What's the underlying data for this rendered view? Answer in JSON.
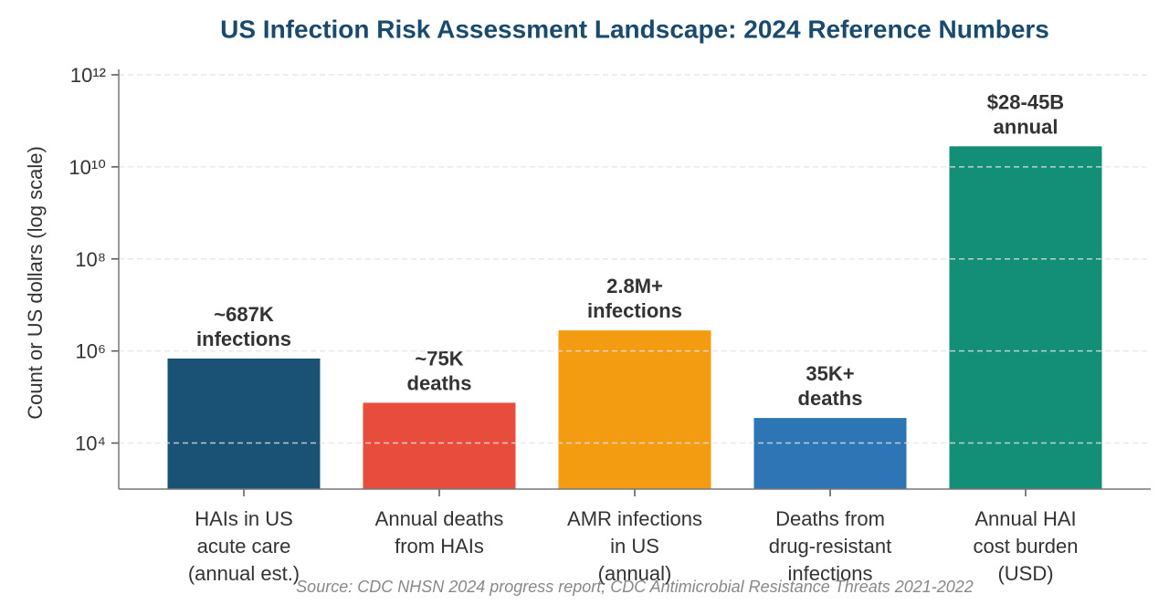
{
  "chart_data": {
    "type": "bar",
    "title": "US Infection Risk Assessment Landscape: 2024 Reference Numbers",
    "y_label": "Count or US dollars (log scale)",
    "source": "Source: CDC NHSN 2024 progress report; CDC Antimicrobial Resistance Threats 2021-2022",
    "categories": [
      "HAIs in US\nacute care\n(annual est.)",
      "Annual deaths\nfrom HAIs",
      "AMR infections\nin US\n(annual)",
      "Deaths from\ndrug-resistant\ninfections",
      "Annual HAI\ncost burden\n(USD)"
    ],
    "values": [
      687000,
      75000,
      2800000,
      35000,
      28000000000
    ],
    "value_labels": [
      "~687K\ninfections",
      "~75K\ndeaths",
      "2.8M+\ninfections",
      "35K+\ndeaths",
      "$28-45B\nannual"
    ],
    "colors": [
      "#1a5276",
      "#e74c3c",
      "#f39c12",
      "#2e75b6",
      "#148f77"
    ],
    "log_scale": true,
    "ylim": [
      1000,
      1000000000000
    ],
    "yticks": [
      {
        "value": 10000,
        "label": "10⁴"
      },
      {
        "value": 1000000,
        "label": "10⁶"
      },
      {
        "value": 100000000,
        "label": "10⁸"
      },
      {
        "value": 10000000000,
        "label": "10¹⁰"
      },
      {
        "value": 1000000000000,
        "label": "10¹²"
      }
    ],
    "grid": true
  }
}
